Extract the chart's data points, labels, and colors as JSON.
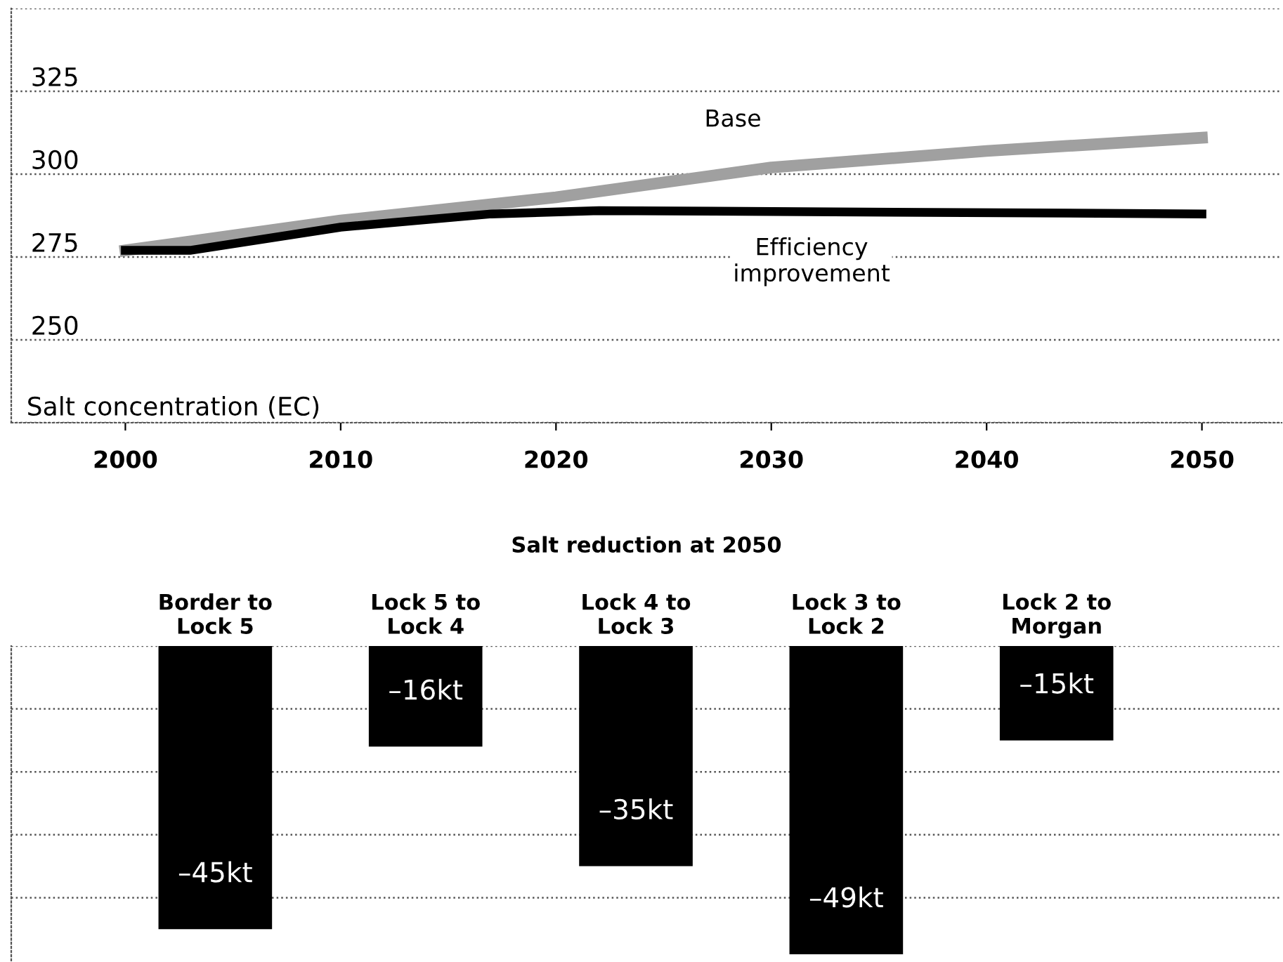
{
  "chart_data": [
    {
      "type": "line",
      "ylabel": "Salt concentration (EC)",
      "series": [
        {
          "name": "Base",
          "color": "#a0a0a0",
          "x": [
            2000,
            2010,
            2020,
            2030,
            2040,
            2050
          ],
          "values": [
            277,
            286,
            293,
            302,
            307,
            311
          ]
        },
        {
          "name": "Efficiency improvement",
          "color": "#000000",
          "x": [
            2000,
            2003,
            2010,
            2017,
            2022,
            2050
          ],
          "values": [
            277,
            277,
            284,
            288,
            289,
            288
          ]
        }
      ],
      "xlim": [
        1994.7,
        2053.7
      ],
      "xticks": [
        2000,
        2010,
        2020,
        2030,
        2040,
        2050
      ],
      "ylim": [
        225,
        350
      ],
      "yticks": [
        {
          "value": 225,
          "label": null
        },
        250,
        275,
        300,
        325,
        {
          "value": 350,
          "label": null
        }
      ],
      "grid": "y",
      "legend": false,
      "marker": "none",
      "line_style": "solid"
    },
    {
      "type": "bar",
      "title": "Salt reduction at 2050",
      "categories": [
        "Border to\nLock 5",
        "Lock 5 to\nLock 4",
        "Lock 4 to\nLock 3",
        "Lock 3 to\nLock 2",
        "Lock 2 to\nMorgan"
      ],
      "values": [
        -45,
        -16,
        -35,
        -49,
        -15
      ],
      "color": "#000000",
      "value_labels": [
        "–45kt",
        "–16kt",
        "–35kt",
        "–49kt",
        "–15kt"
      ],
      "ylim": [
        -50,
        0
      ],
      "yticks": [
        {
          "value": 0,
          "label": null
        },
        {
          "value": -10,
          "label": null
        },
        {
          "value": -20,
          "label": null
        },
        {
          "value": -30,
          "label": null
        },
        {
          "value": -40,
          "label": null
        }
      ],
      "grid": "y",
      "legend": false
    }
  ]
}
